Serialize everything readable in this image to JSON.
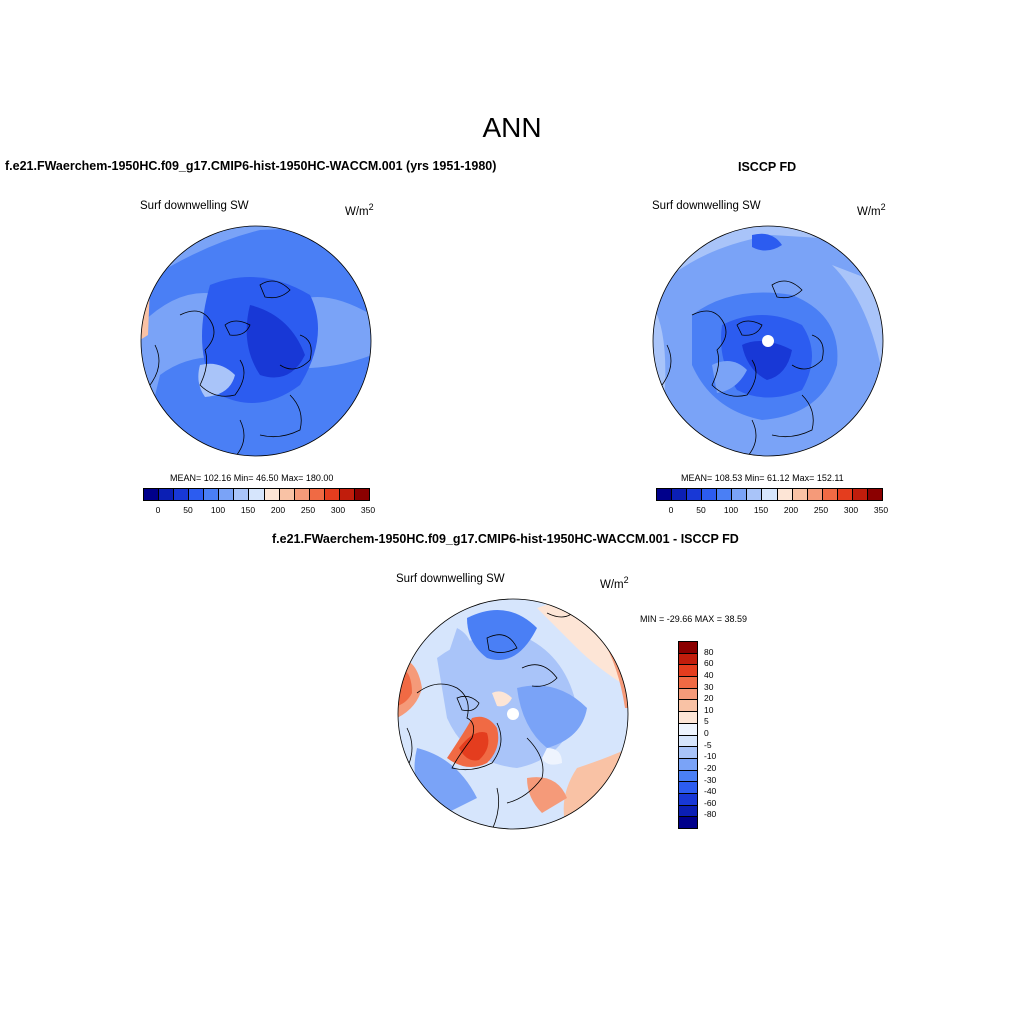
{
  "page_title": "ANN",
  "panels": {
    "model": {
      "title": "f.e21.FWaerchem-1950HC.f09_g17.CMIP6-hist-1950HC-WACCM.001 (yrs 1951-1980)",
      "variable": "Surf downwelling SW",
      "units": "W/m",
      "units_sup": "2",
      "stats": "MEAN= 102.16  Min=  46.50  Max= 180.00"
    },
    "obs": {
      "title": "ISCCP FD",
      "variable": "Surf downwelling SW",
      "units": "W/m",
      "units_sup": "2",
      "stats": "MEAN= 108.53  Min=  61.12  Max= 152.11"
    },
    "diff": {
      "title": "f.e21.FWaerchem-1950HC.f09_g17.CMIP6-hist-1950HC-WACCM.001 - ISCCP FD",
      "variable": "Surf downwelling SW",
      "units": "W/m",
      "units_sup": "2",
      "stats": "MIN = -29.66 MAX =  38.59"
    }
  },
  "colorbar_abs": {
    "labels": [
      "0",
      "50",
      "100",
      "150",
      "200",
      "250",
      "300",
      "350"
    ],
    "colors": [
      "#00008b",
      "#0b1fb4",
      "#1838d6",
      "#2c5cf0",
      "#4a7ff5",
      "#7aa3f7",
      "#a9c4f9",
      "#d6e5fc",
      "#fde5d6",
      "#f9c2a5",
      "#f59a79",
      "#f06a44",
      "#e43d1e",
      "#c11d0c",
      "#8b0000"
    ]
  },
  "colorbar_diff": {
    "labels": [
      "80",
      "60",
      "40",
      "30",
      "20",
      "10",
      "5",
      "0",
      "-5",
      "-10",
      "-20",
      "-30",
      "-40",
      "-60",
      "-80"
    ],
    "colors": [
      "#8b0000",
      "#c11d0c",
      "#e43d1e",
      "#f06a44",
      "#f59a79",
      "#f9c2a5",
      "#fde5d6",
      "#eef4fe",
      "#d6e5fc",
      "#a9c4f9",
      "#7aa3f7",
      "#4a7ff5",
      "#2c5cf0",
      "#1838d6",
      "#0b1fb4",
      "#00008b"
    ]
  }
}
